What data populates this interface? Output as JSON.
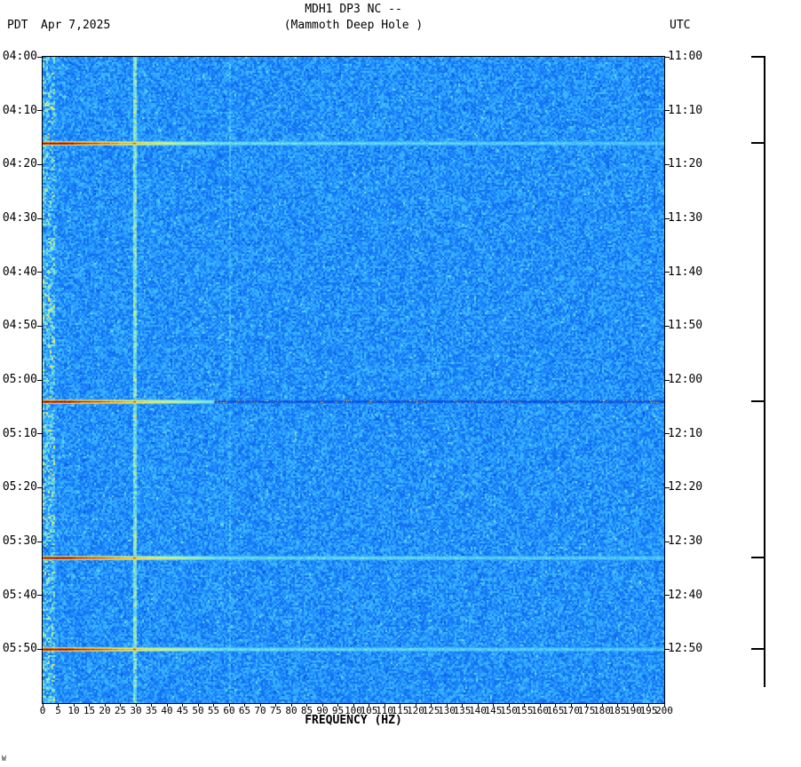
{
  "header": {
    "title": "MDH1 DP3 NC --",
    "subtitle": "(Mammoth Deep Hole )",
    "timezone_left": "PDT",
    "date": "Apr 7,2025",
    "timezone_right": "UTC"
  },
  "x_axis": {
    "label": "FREQUENCY (HZ)",
    "min_hz": 0,
    "max_hz": 200,
    "tick_step_hz": 5,
    "ticks": [
      0,
      5,
      10,
      15,
      20,
      25,
      30,
      35,
      40,
      45,
      50,
      55,
      60,
      65,
      70,
      75,
      80,
      85,
      90,
      95,
      100,
      105,
      110,
      115,
      120,
      125,
      130,
      135,
      140,
      145,
      150,
      155,
      160,
      165,
      170,
      175,
      180,
      185,
      190,
      195,
      200
    ]
  },
  "y_axis_left": {
    "timezone": "PDT",
    "ticks": [
      "04:00",
      "04:10",
      "04:20",
      "04:30",
      "04:40",
      "04:50",
      "05:00",
      "05:10",
      "05:20",
      "05:30",
      "05:40",
      "05:50"
    ]
  },
  "y_axis_right": {
    "timezone": "UTC",
    "ticks": [
      "11:00",
      "11:10",
      "11:20",
      "11:30",
      "11:40",
      "11:50",
      "12:00",
      "12:10",
      "12:20",
      "12:30",
      "12:40",
      "12:50"
    ]
  },
  "marker_bar": {
    "top_pdt": "04:00",
    "bottom_pdt": "05:57",
    "ticks_pdt": [
      "04:00",
      "04:16",
      "05:04",
      "05:33",
      "05:50"
    ]
  },
  "corner_mark": "W",
  "colors": {
    "background_noise": "#1478d2",
    "event_core": "#7a0000",
    "event_mid": "#ff9620",
    "tone_line": "#aee6ff",
    "frame": "#000000"
  },
  "chart_data": {
    "type": "heatmap",
    "subtype": "seismic-spectrogram",
    "title": "MDH1 DP3 NC -- (Mammoth Deep Hole )",
    "xlabel": "FREQUENCY (HZ)",
    "x_range_hz": [
      0,
      200
    ],
    "x_tick_step_hz": 5,
    "time_axis_left_timezone": "PDT",
    "time_axis_right_timezone": "UTC",
    "date": "Apr 7,2025",
    "time_start_pdt": "04:00",
    "time_end_pdt": "06:00",
    "time_tick_step_min": 10,
    "background_character": "low-amplitude broadband blue noise, elevated energy below 5 Hz",
    "persistent_tones_hz": [
      29.5,
      60
    ],
    "events": [
      {
        "time_pdt": "04:16",
        "time_utc": "11:16",
        "peak_hz_band": [
          0,
          55
        ],
        "trail": "bright",
        "strength": 1.0
      },
      {
        "time_pdt": "05:04",
        "time_utc": "12:04",
        "peak_hz_band": [
          0,
          55
        ],
        "trail": "dark",
        "strength": 1.0
      },
      {
        "time_pdt": "05:33",
        "time_utc": "12:33",
        "peak_hz_band": [
          0,
          55
        ],
        "trail": "bright",
        "strength": 1.0
      },
      {
        "time_pdt": "05:50",
        "time_utc": "12:50",
        "peak_hz_band": [
          0,
          55
        ],
        "trail": "bright",
        "strength": 1.0
      }
    ]
  }
}
